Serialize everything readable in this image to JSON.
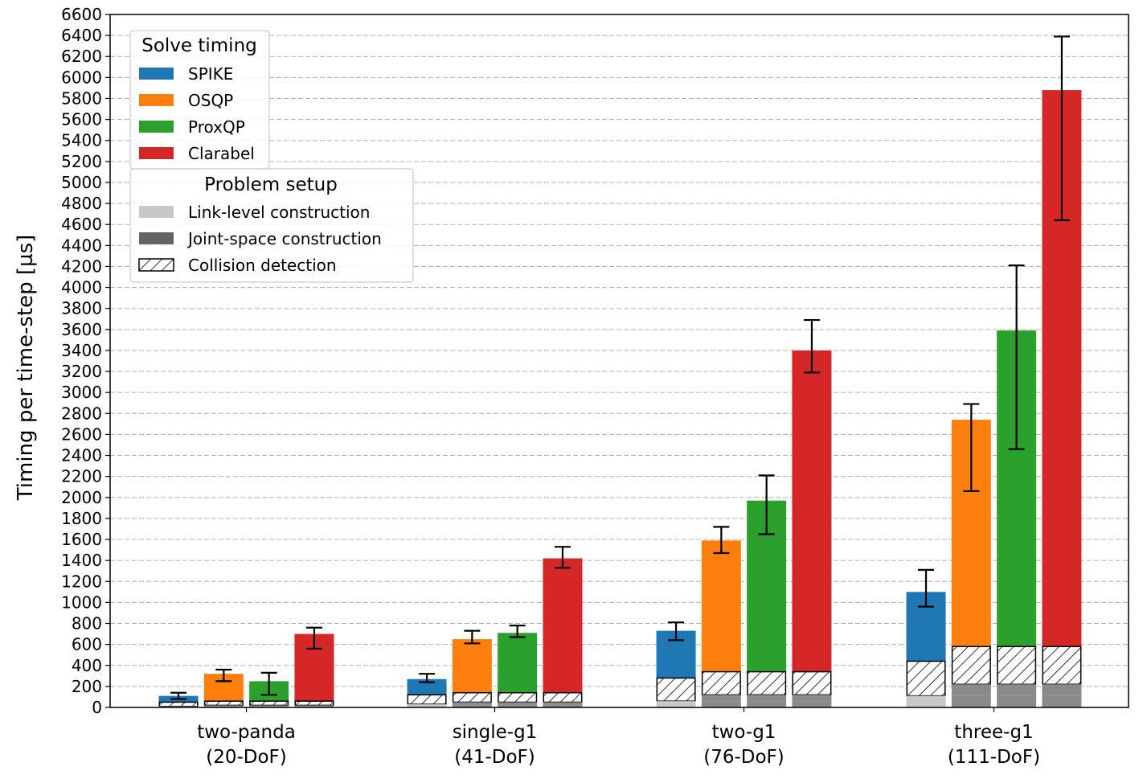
{
  "chart_data": {
    "type": "bar",
    "ylabel": "Timing per time-step  [µs]",
    "ylim": [
      0,
      6600
    ],
    "yticks": [
      0,
      200,
      400,
      600,
      800,
      1000,
      1200,
      1400,
      1600,
      1800,
      2000,
      2200,
      2400,
      2600,
      2800,
      3000,
      3200,
      3400,
      3600,
      3800,
      4000,
      4200,
      4400,
      4600,
      4800,
      5000,
      5200,
      5400,
      5600,
      5800,
      6000,
      6200,
      6400,
      6600
    ],
    "grid": "horizontal dashed",
    "categories": [
      {
        "line1": "two-panda",
        "line2": "(20-DoF)"
      },
      {
        "line1": "single-g1",
        "line2": "(41-DoF)"
      },
      {
        "line1": "two-g1",
        "line2": "(76-DoF)"
      },
      {
        "line1": "three-g1",
        "line2": "(111-DoF)"
      }
    ],
    "series": [
      {
        "name": "SPIKE",
        "color": "#1f77b4",
        "totals": [
          110,
          270,
          730,
          1100
        ],
        "err_low": [
          80,
          240,
          640,
          960
        ],
        "err_high": [
          140,
          320,
          810,
          1310
        ]
      },
      {
        "name": "OSQP",
        "color": "#ff7f0e",
        "totals": [
          320,
          650,
          1590,
          2740
        ],
        "err_low": [
          250,
          610,
          1470,
          2060
        ],
        "err_high": [
          360,
          730,
          1720,
          2890
        ]
      },
      {
        "name": "ProxQP",
        "color": "#2ca02c",
        "totals": [
          250,
          710,
          1970,
          3590
        ],
        "err_low": [
          120,
          670,
          1650,
          2460
        ],
        "err_high": [
          330,
          780,
          2210,
          4210
        ]
      },
      {
        "name": "Clarabel",
        "color": "#d62728",
        "totals": [
          700,
          1420,
          3400,
          5880
        ],
        "err_low": [
          560,
          1330,
          3190,
          4640
        ],
        "err_high": [
          760,
          1530,
          3690,
          6390
        ]
      }
    ],
    "setup": {
      "link_level": [
        [
          10,
          10,
          10,
          10
        ],
        [
          30,
          30,
          30,
          30
        ],
        [
          60,
          60,
          60,
          60
        ],
        [
          110,
          110,
          110,
          110
        ]
      ],
      "link_level_visible": [
        true,
        true,
        true,
        true
      ],
      "joint_space": [
        [
          0,
          10,
          10,
          10
        ],
        [
          0,
          20,
          20,
          20
        ],
        [
          0,
          60,
          60,
          60
        ],
        [
          0,
          110,
          110,
          110
        ]
      ],
      "collision": [
        [
          40,
          40,
          40,
          40
        ],
        [
          90,
          90,
          90,
          90
        ],
        [
          220,
          220,
          220,
          220
        ],
        [
          330,
          360,
          360,
          360
        ]
      ]
    },
    "legend_solve": {
      "title": "Solve timing",
      "items": [
        {
          "label": "SPIKE",
          "color": "#1f77b4"
        },
        {
          "label": "OSQP",
          "color": "#ff7f0e"
        },
        {
          "label": "ProxQP",
          "color": "#2ca02c"
        },
        {
          "label": "Clarabel",
          "color": "#d62728"
        }
      ],
      "placement": "top-left"
    },
    "legend_setup": {
      "title": "Problem setup",
      "items": [
        {
          "label": "Link-level construction",
          "color": "#c8c8c8",
          "style": "solid"
        },
        {
          "label": "Joint-space construction",
          "color": "#646464",
          "style": "solid"
        },
        {
          "label": "Collision detection",
          "color": "#ffffff",
          "style": "hatch"
        }
      ],
      "placement": "upper-left"
    }
  }
}
